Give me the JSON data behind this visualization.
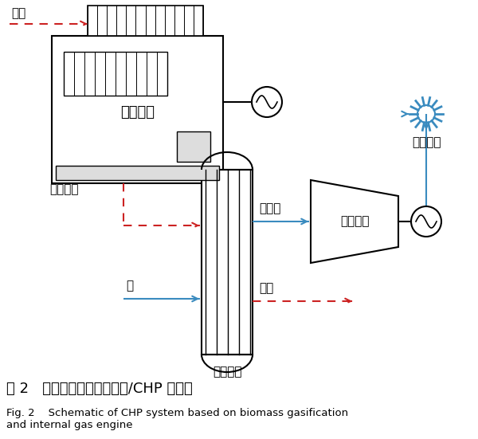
{
  "title_cn": "图 2   生物质气化内燃机发电/CHP 示意图",
  "title_en": "Fig. 2    Schematic of CHP system based on biomass gasification\nand internal gas engine",
  "bg_color": "#ffffff",
  "blue_color": "#3a8bbf",
  "red_color": "#cc2222",
  "black": "#000000",
  "labels": {
    "engine": "内燃机组",
    "boiler": "余热锅炉",
    "turbine": "汽轮机组",
    "heat_user": "供热用户",
    "gas": "燃气",
    "hot_flue": "高温烟气",
    "steam": "水蒸气",
    "water": "水",
    "flue": "烟气"
  }
}
